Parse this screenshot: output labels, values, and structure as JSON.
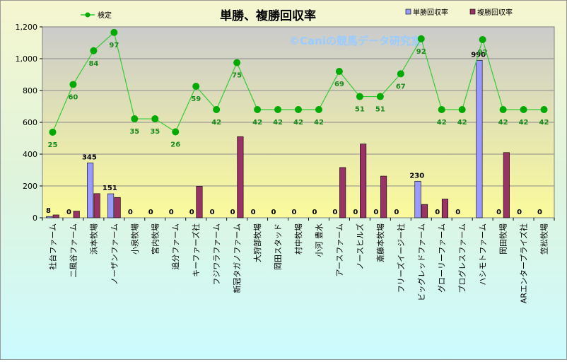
{
  "chart_data": {
    "type": "bar",
    "title": "単勝、複勝回収率",
    "watermark": "©Caniの競馬データ研究室",
    "categories": [
      "社台ファーム",
      "二風谷ファーム",
      "浜本牧場",
      "ノーザンファーム",
      "小泉牧場",
      "宮内牧場",
      "追分ファーム",
      "キーファーズ社",
      "フジワラファーム",
      "新冠タガノファーム",
      "大狩部牧場",
      "岡田スタッド",
      "村中牧場",
      "小河 豊水",
      "アースファーム",
      "ノースヒルズ",
      "斎藤本牧場",
      "フリーズイージー社",
      "ビッグレッドファーム",
      "グローリーファーム",
      "プログレスファーム",
      "ハシモトファーム",
      "岡田牧場",
      "ARエンタープライズ社",
      "笠松牧場"
    ],
    "series": [
      {
        "name": "単勝回収率",
        "color": "#9999ff",
        "values": [
          8,
          0,
          345,
          151,
          0,
          0,
          0,
          0,
          0,
          0,
          0,
          0,
          0,
          0,
          0,
          0,
          0,
          0,
          230,
          0,
          0,
          990,
          0,
          0,
          0
        ]
      },
      {
        "name": "複勝回収率",
        "color": "#993366",
        "values": [
          18,
          42,
          152,
          128,
          0,
          0,
          0,
          198,
          0,
          510,
          0,
          0,
          0,
          0,
          316,
          464,
          262,
          0,
          84,
          118,
          0,
          0,
          410,
          0,
          0
        ]
      },
      {
        "name": "検定",
        "type": "line",
        "color": "#33cc33",
        "marker_color": "#00aa00",
        "values": [
          538,
          838,
          1050,
          1165,
          622,
          622,
          540,
          826,
          680,
          975,
          680,
          680,
          680,
          680,
          920,
          762,
          762,
          905,
          1125,
          680,
          680,
          1120,
          680,
          680,
          680
        ],
        "labels": [
          25,
          60,
          84,
          97,
          35,
          35,
          26,
          59,
          42,
          75,
          42,
          42,
          42,
          42,
          69,
          51,
          51,
          67,
          92,
          42,
          42,
          92,
          42,
          42,
          42
        ]
      }
    ],
    "bar_labels": [
      "8",
      "0",
      "345",
      "151",
      "0",
      "0",
      "0",
      "0",
      "0",
      "0",
      "0",
      "0",
      "0",
      "0",
      "0",
      "0",
      "0",
      "0",
      "230",
      "0",
      "0",
      "990",
      "0",
      "0",
      "0"
    ],
    "ylim": [
      0,
      1200
    ],
    "yticks": [
      "0",
      "200",
      "400",
      "600",
      "800",
      "1,000",
      "1,200"
    ],
    "ytick_values": [
      0,
      200,
      400,
      600,
      800,
      1000,
      1200
    ],
    "grid": true,
    "legend": "top"
  }
}
